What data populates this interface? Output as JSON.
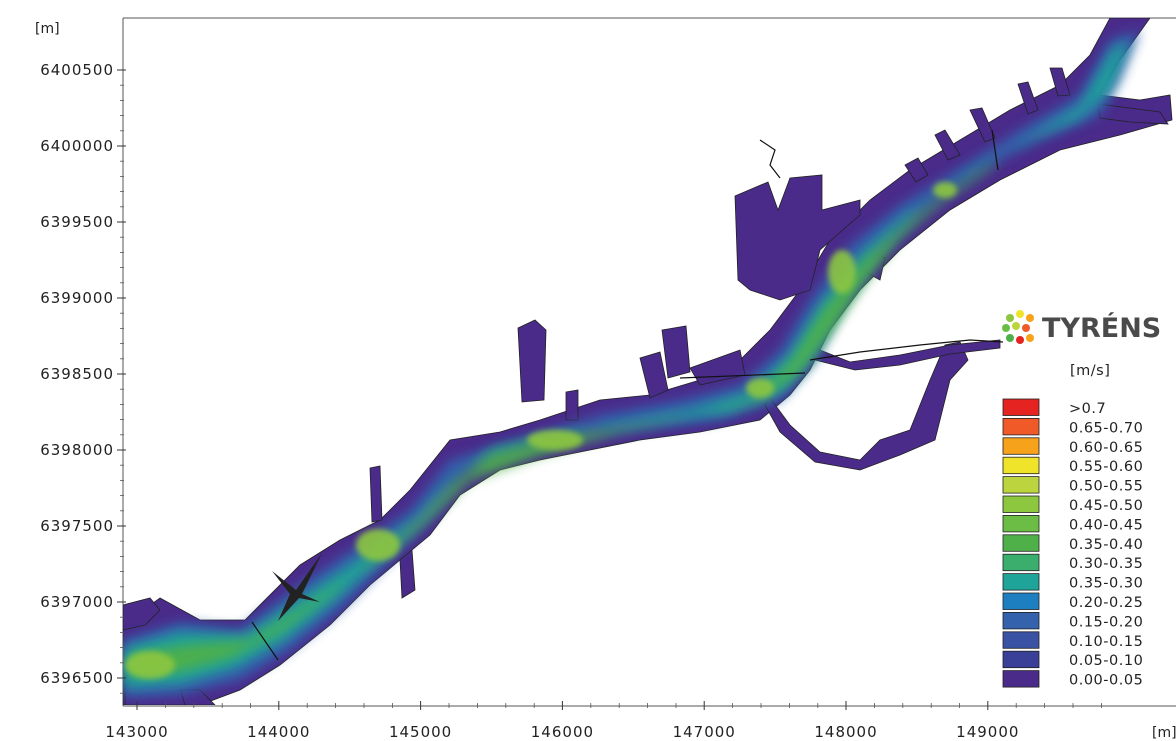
{
  "brand": {
    "name": "TYRÉNS"
  },
  "axes": {
    "y_unit": "[m]",
    "x_unit": "[m]",
    "y_ticks": [
      "6400500",
      "6400000",
      "6399500",
      "6399000",
      "6398500",
      "6398000",
      "6397500",
      "6397000",
      "6396500"
    ],
    "x_ticks": [
      "143000",
      "144000",
      "145000",
      "146000",
      "147000",
      "148000",
      "149000"
    ]
  },
  "legend": {
    "title": "[m/s]",
    "items": [
      {
        "label": ">0.7",
        "color": "#e52421"
      },
      {
        "label": "0.65-0.70",
        "color": "#f05a28"
      },
      {
        "label": "0.60-0.65",
        "color": "#f7a21b"
      },
      {
        "label": "0.55-0.60",
        "color": "#efe42a"
      },
      {
        "label": "0.50-0.55",
        "color": "#bcd43e"
      },
      {
        "label": "0.45-0.50",
        "color": "#8dc63f"
      },
      {
        "label": "0.40-0.45",
        "color": "#6bbd45"
      },
      {
        "label": "0.35-0.40",
        "color": "#4fb04a"
      },
      {
        "label": "0.30-0.35",
        "color": "#3bae6e"
      },
      {
        "label": "0.35-0.30",
        "color": "#1fa49a"
      },
      {
        "label": "0.20-0.25",
        "color": "#1e7fc0"
      },
      {
        "label": "0.15-0.20",
        "color": "#3462ad"
      },
      {
        "label": "0.10-0.15",
        "color": "#3a52a3"
      },
      {
        "label": "0.05-0.10",
        "color": "#3a3f98"
      },
      {
        "label": "0.00-0.05",
        "color": "#4a2b8a"
      }
    ]
  }
}
